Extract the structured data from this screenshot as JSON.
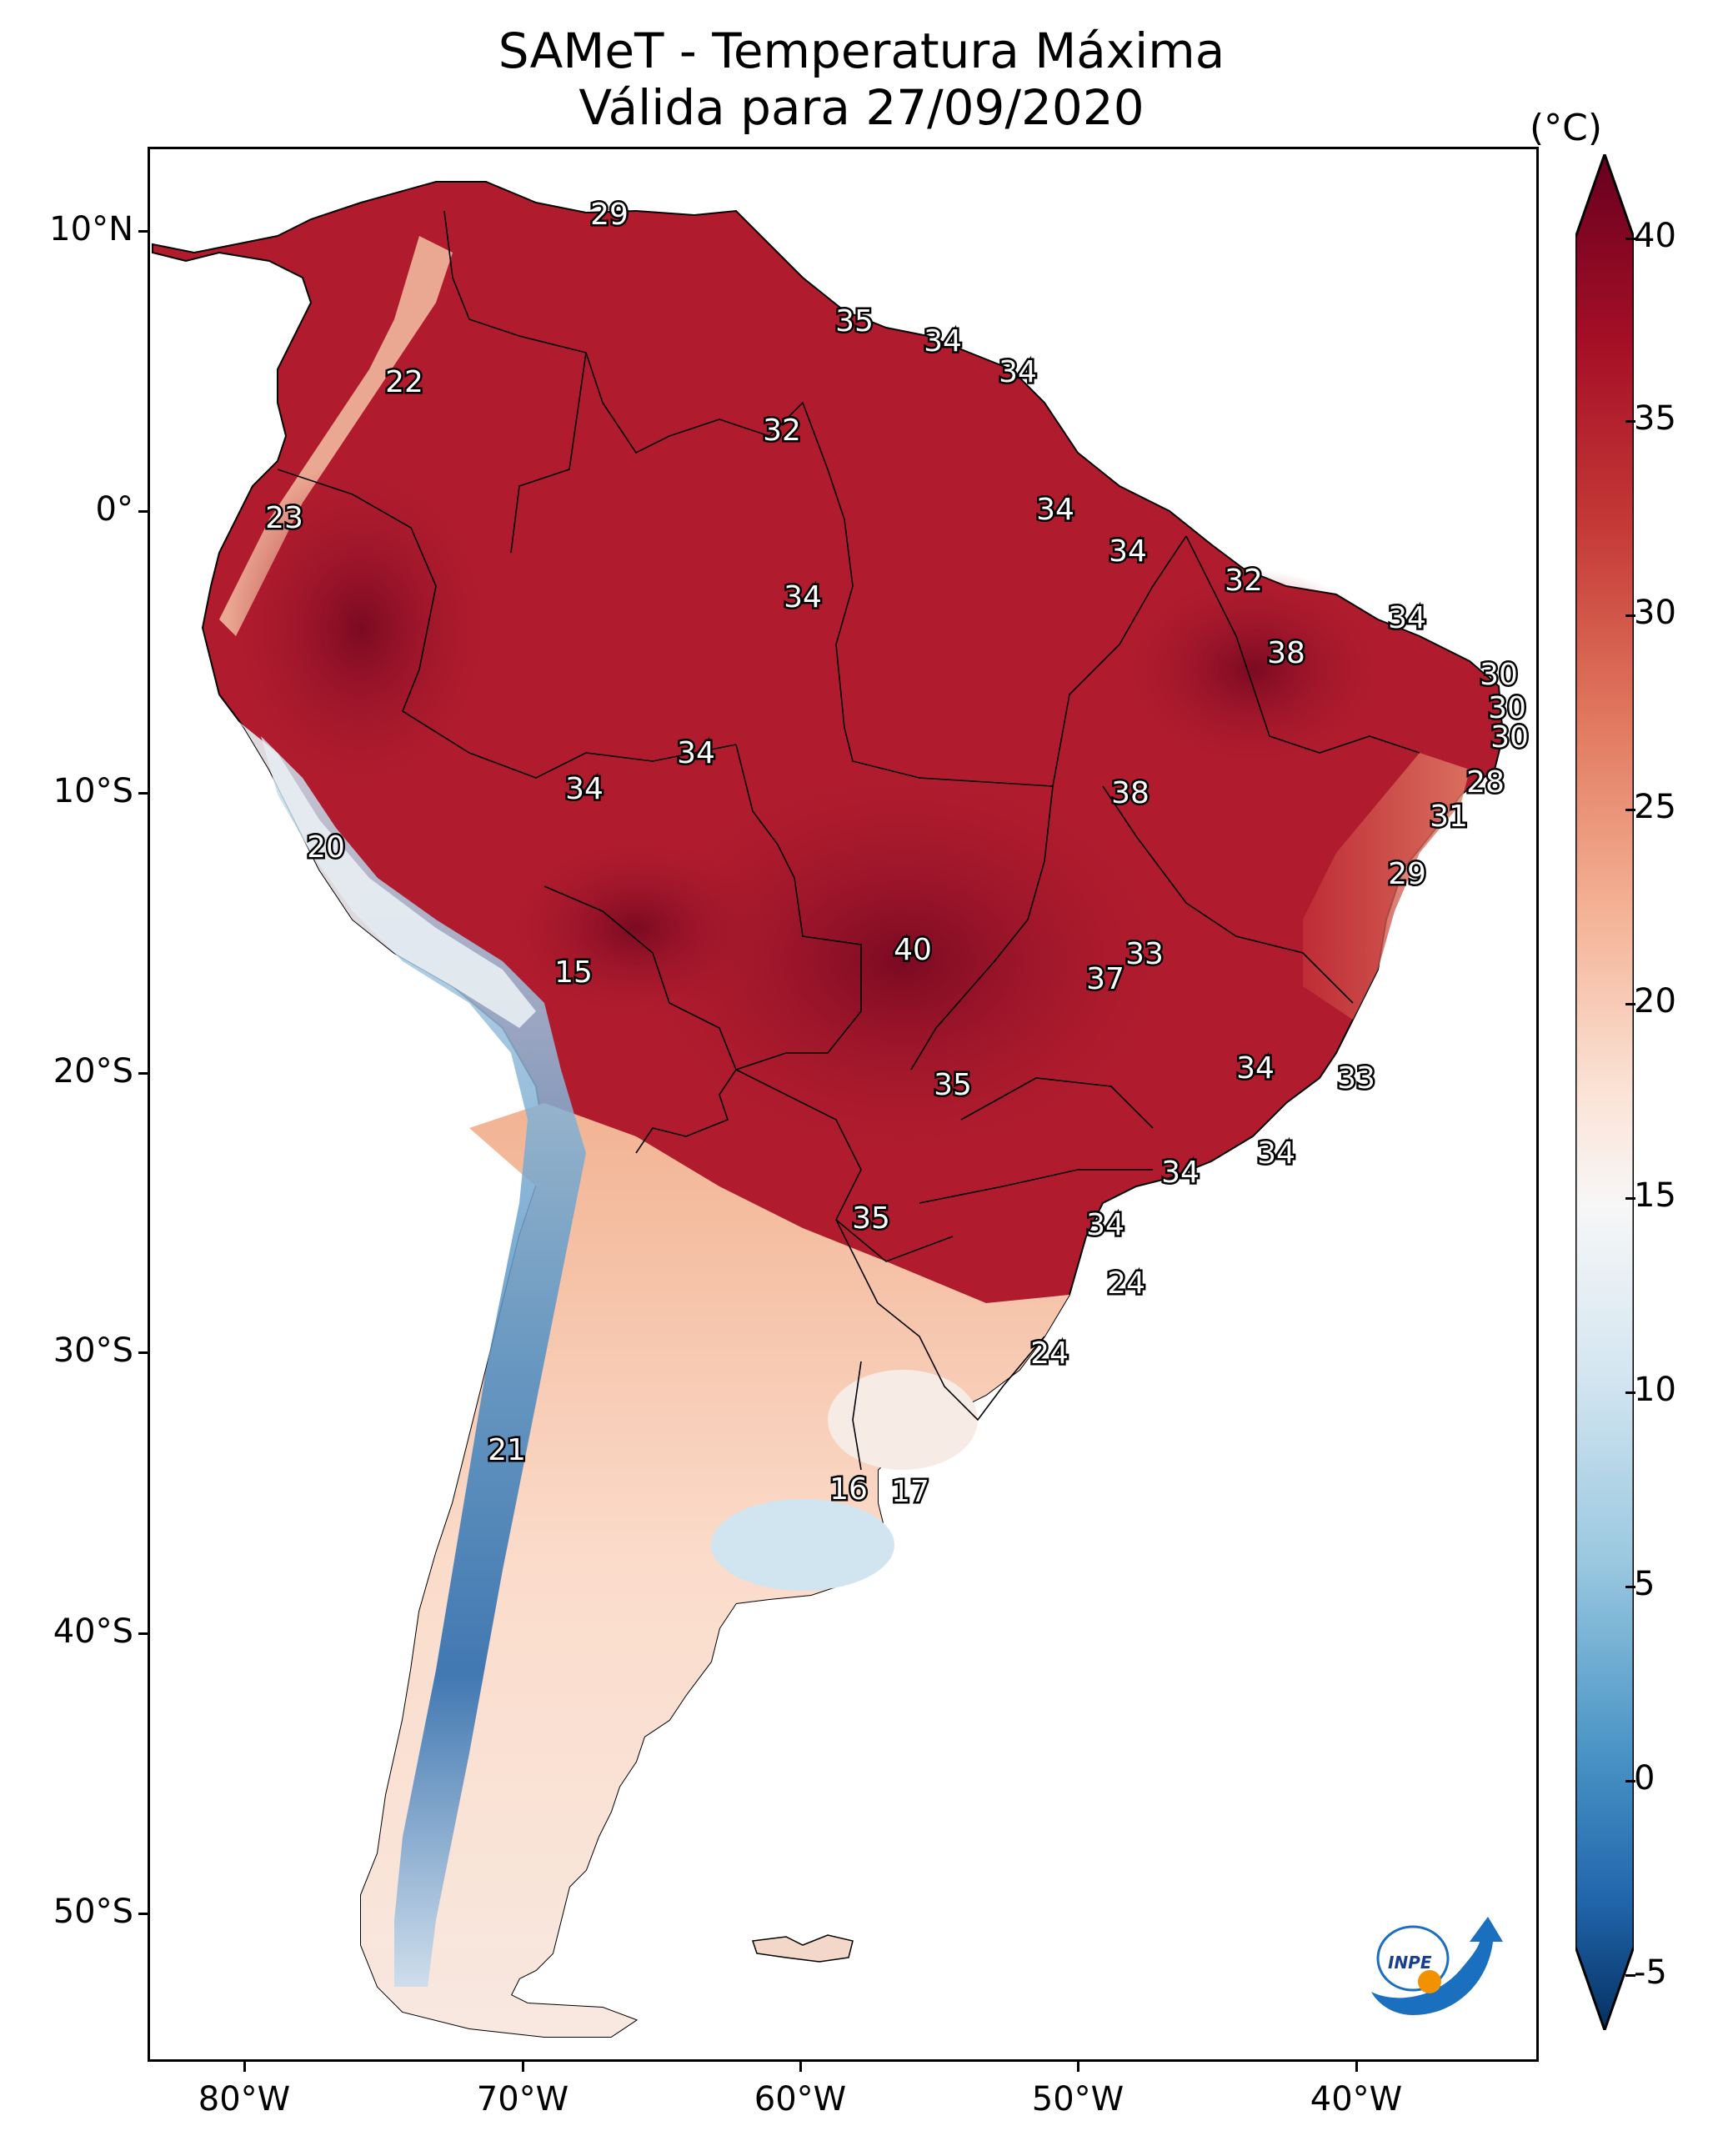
{
  "title": {
    "line1": "SAMeT - Temperatura Máxima",
    "line2": "Válida para 27/09/2020"
  },
  "axes": {
    "y_labels": [
      "10°N",
      "0°",
      "10°S",
      "20°S",
      "30°S",
      "40°S",
      "50°S"
    ],
    "x_labels": [
      "80°W",
      "70°W",
      "60°W",
      "50°W",
      "40°W"
    ]
  },
  "colorbar": {
    "unit": "(°C)",
    "ticks": [
      "40",
      "35",
      "30",
      "25",
      "20",
      "15",
      "10",
      "5",
      "0",
      "-5"
    ],
    "min": -7,
    "max": 40,
    "colormap": "RdBu_r",
    "colors": {
      "max": "#67001f",
      "high": "#b2182b",
      "warm": "#d6604d",
      "mild": "#f4a582",
      "light": "#fddbc7",
      "neutral": "#f7f7f7",
      "cool": "#d1e5f0",
      "cold": "#92c5de",
      "colder": "#4393c3",
      "coldest": "#2166ac",
      "min": "#053061"
    }
  },
  "map_labels": [
    {
      "text": "29"
    },
    {
      "text": "35"
    },
    {
      "text": "34"
    },
    {
      "text": "34"
    },
    {
      "text": "22"
    },
    {
      "text": "32"
    },
    {
      "text": "23"
    },
    {
      "text": "34"
    },
    {
      "text": "34"
    },
    {
      "text": "34"
    },
    {
      "text": "32"
    },
    {
      "text": "34"
    },
    {
      "text": "38"
    },
    {
      "text": "30"
    },
    {
      "text": "30"
    },
    {
      "text": "30"
    },
    {
      "text": "34"
    },
    {
      "text": "28"
    },
    {
      "text": "34"
    },
    {
      "text": "38"
    },
    {
      "text": "31"
    },
    {
      "text": "20"
    },
    {
      "text": "29"
    },
    {
      "text": "40"
    },
    {
      "text": "33"
    },
    {
      "text": "15"
    },
    {
      "text": "37"
    },
    {
      "text": "34"
    },
    {
      "text": "33"
    },
    {
      "text": "35"
    },
    {
      "text": "34"
    },
    {
      "text": "34"
    },
    {
      "text": "35"
    },
    {
      "text": "34"
    },
    {
      "text": "24"
    },
    {
      "text": "24"
    },
    {
      "text": "21"
    },
    {
      "text": "16"
    },
    {
      "text": "17"
    }
  ],
  "logo": {
    "text": "INPE"
  }
}
